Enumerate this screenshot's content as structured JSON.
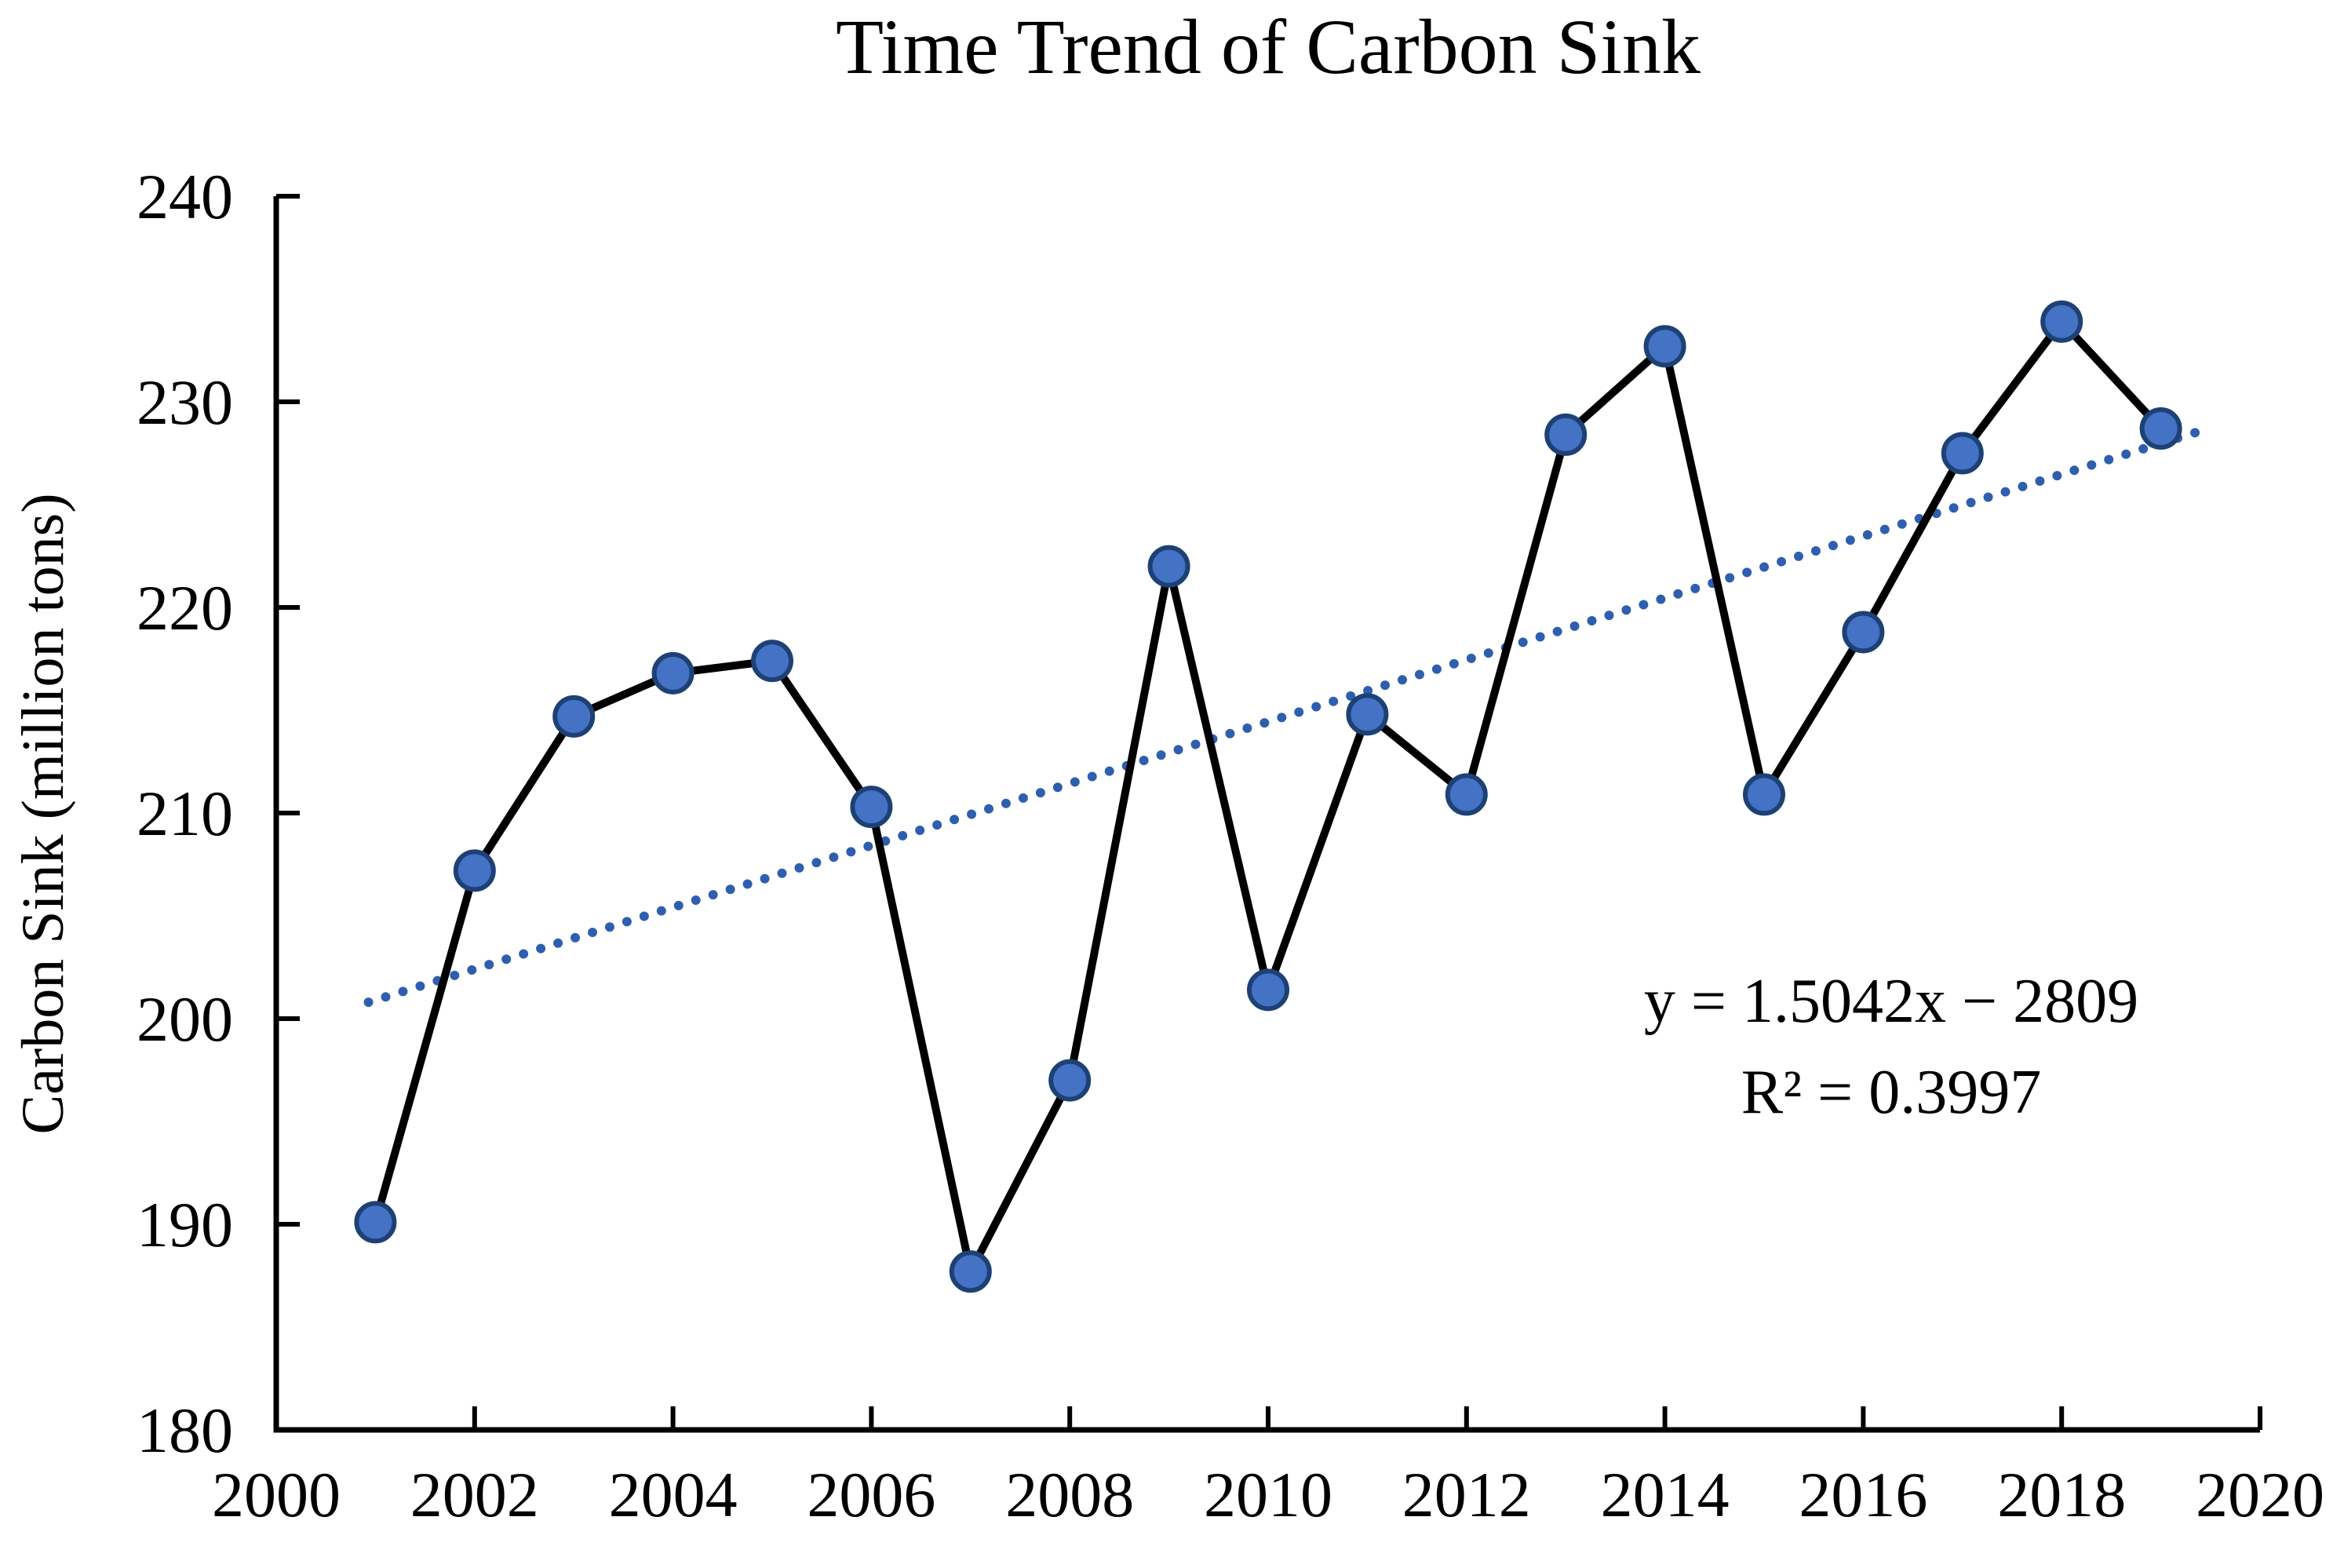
{
  "header": {
    "title": "Time Trend of Carbon Sink"
  },
  "axes": {
    "y_label": "Carbon Sink (million tons)"
  },
  "annotation": {
    "equation": "y = 1.5042x − 2809",
    "r_squared": "R² = 0.3997"
  },
  "chart_data": {
    "type": "line",
    "title": "Time Trend of Carbon Sink",
    "xlabel": "",
    "ylabel": "Carbon Sink (million tons)",
    "x": [
      2001,
      2002,
      2003,
      2004,
      2005,
      2006,
      2007,
      2008,
      2009,
      2010,
      2011,
      2012,
      2013,
      2014,
      2015,
      2016,
      2017,
      2018,
      2019
    ],
    "series": [
      {
        "name": "Carbon Sink",
        "values": [
          190.1,
          207.2,
          214.7,
          216.8,
          217.4,
          210.3,
          187.7,
          197.0,
          222.0,
          201.4,
          214.8,
          210.9,
          228.4,
          232.7,
          210.9,
          218.8,
          227.5,
          233.9,
          228.7
        ]
      }
    ],
    "trendline": {
      "style": "dotted",
      "slope": 1.5042,
      "intercept": -2809,
      "x_start": 2000.93,
      "x_end": 2019.35,
      "equation_text": "y = 1.5042x − 2809",
      "r_squared_text": "R² = 0.3997"
    },
    "xlim": [
      2000,
      2020
    ],
    "ylim": [
      180,
      240
    ],
    "x_ticks": [
      2000,
      2002,
      2004,
      2006,
      2008,
      2010,
      2012,
      2014,
      2016,
      2018,
      2020
    ],
    "y_ticks": [
      180,
      190,
      200,
      210,
      220,
      230,
      240
    ],
    "grid": false,
    "legend_position": "none",
    "marker": "circle",
    "colors": {
      "series_line": "#000000",
      "marker_fill": "#4472c4",
      "marker_border": "#1e4175",
      "trendline": "#2e5fae",
      "axis": "#000000",
      "text": "#000000",
      "background": "#ffffff"
    }
  }
}
